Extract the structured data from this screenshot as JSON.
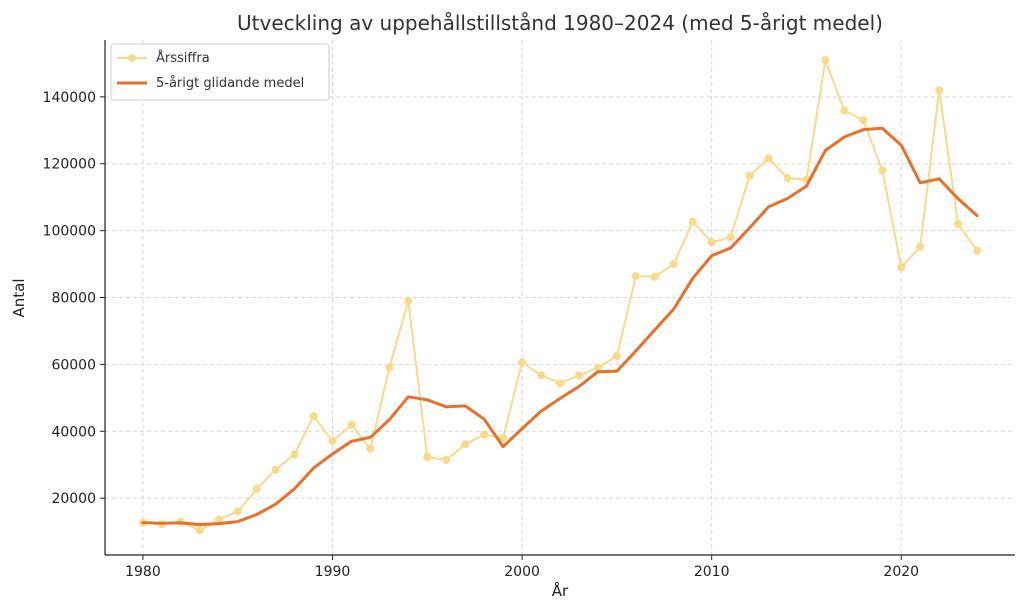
{
  "chart_data": {
    "type": "line",
    "title": "Utveckling av uppehållstillstånd 1980–2024 (med 5-årigt medel)",
    "xlabel": "År",
    "ylabel": "Antal",
    "xlim": [
      1978,
      2026
    ],
    "ylim": [
      3000,
      157000
    ],
    "x_ticks": [
      1980,
      1990,
      2000,
      2010,
      2020
    ],
    "y_ticks": [
      20000,
      40000,
      60000,
      80000,
      100000,
      120000,
      140000
    ],
    "grid": true,
    "legend_position": "top-left",
    "x": [
      1980,
      1981,
      1982,
      1983,
      1984,
      1985,
      1986,
      1987,
      1988,
      1989,
      1990,
      1991,
      1992,
      1993,
      1994,
      1995,
      1996,
      1997,
      1998,
      1999,
      2000,
      2001,
      2002,
      2003,
      2004,
      2005,
      2006,
      2007,
      2008,
      2009,
      2010,
      2011,
      2012,
      2013,
      2014,
      2015,
      2016,
      2017,
      2018,
      2019,
      2020,
      2021,
      2022,
      2023,
      2024
    ],
    "series": [
      {
        "name": "Årssiffra",
        "color": "#f9d98a",
        "marker": true,
        "values": [
          12700,
          12200,
          12900,
          10400,
          13600,
          16000,
          22700,
          28500,
          33100,
          44500,
          37100,
          41900,
          34800,
          59000,
          79000,
          32300,
          31400,
          36100,
          39000,
          38000,
          60600,
          56800,
          54400,
          56700,
          59000,
          62500,
          86400,
          86200,
          90000,
          102700,
          96500,
          98000,
          116400,
          121600,
          115700,
          115300,
          151000,
          135900,
          133000,
          118000,
          89000,
          95200,
          142000,
          102000,
          94000
        ]
      },
      {
        "name": "5-årigt glidande medel",
        "color": "#e8702a",
        "marker": false,
        "values": [
          12700,
          12500,
          12600,
          12100,
          12400,
          13000,
          15100,
          18200,
          22800,
          29000,
          33200,
          37000,
          38200,
          43500,
          50300,
          49400,
          47300,
          47600,
          43600,
          35400,
          40800,
          46000,
          49800,
          53400,
          57800,
          58000,
          64000,
          70300,
          76600,
          85700,
          92500,
          94800,
          100800,
          107100,
          109600,
          113300,
          124000,
          128000,
          130200,
          130600,
          125500,
          114300,
          115500,
          109500,
          104500
        ]
      }
    ]
  }
}
